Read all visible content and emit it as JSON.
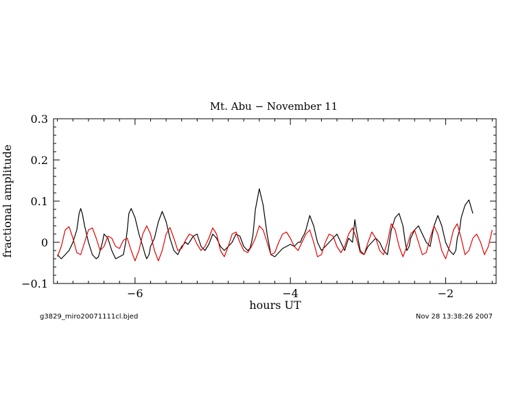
{
  "chart_data": {
    "type": "line",
    "title": "Mt. Abu − November 11",
    "xlabel": "hours UT",
    "ylabel": "fractional amplitude",
    "xlim": [
      -7.05,
      -1.35
    ],
    "ylim": [
      -0.1,
      0.3
    ],
    "x_ticks": [
      -6,
      -4,
      -2
    ],
    "x_tick_labels": [
      "−6",
      "−4",
      "−2"
    ],
    "y_ticks": [
      -0.1,
      0,
      0.1,
      0.2,
      0.3
    ],
    "y_tick_labels": [
      "−0.1",
      "0",
      "0.1",
      "0.2",
      "0.3"
    ],
    "grid": false,
    "series": [
      {
        "color": "#000000",
        "x": [
          -7.0,
          -6.95,
          -6.9,
          -6.85,
          -6.8,
          -6.75,
          -6.72,
          -6.7,
          -6.68,
          -6.65,
          -6.6,
          -6.55,
          -6.5,
          -6.47,
          -6.45,
          -6.42,
          -6.4,
          -6.35,
          -6.3,
          -6.25,
          -6.2,
          -6.15,
          -6.12,
          -6.1,
          -6.08,
          -6.05,
          -6.0,
          -5.95,
          -5.9,
          -5.87,
          -5.85,
          -5.82,
          -5.8,
          -5.75,
          -5.7,
          -5.65,
          -5.6,
          -5.55,
          -5.5,
          -5.45,
          -5.4,
          -5.35,
          -5.32,
          -5.3,
          -5.25,
          -5.2,
          -5.15,
          -5.1,
          -5.05,
          -5.0,
          -4.95,
          -4.9,
          -4.85,
          -4.8,
          -4.75,
          -4.7,
          -4.65,
          -4.6,
          -4.55,
          -4.52,
          -4.5,
          -4.48,
          -4.45,
          -4.4,
          -4.35,
          -4.3,
          -4.25,
          -4.2,
          -4.15,
          -4.1,
          -4.05,
          -4.0,
          -3.95,
          -3.9,
          -3.87,
          -3.85,
          -3.82,
          -3.8,
          -3.75,
          -3.7,
          -3.65,
          -3.6,
          -3.55,
          -3.5,
          -3.45,
          -3.4,
          -3.35,
          -3.3,
          -3.25,
          -3.2,
          -3.17,
          -3.15,
          -3.12,
          -3.1,
          -3.05,
          -3.0,
          -2.95,
          -2.9,
          -2.85,
          -2.8,
          -2.75,
          -2.7,
          -2.65,
          -2.6,
          -2.55,
          -2.52,
          -2.5,
          -2.47,
          -2.45,
          -2.4,
          -2.35,
          -2.3,
          -2.25,
          -2.2,
          -2.15,
          -2.1,
          -2.05,
          -2.0,
          -1.95,
          -1.9,
          -1.87,
          -1.85,
          -1.82,
          -1.8,
          -1.75,
          -1.7,
          -1.65
        ],
        "y": [
          -0.03,
          -0.04,
          -0.03,
          -0.02,
          0.0,
          0.03,
          0.07,
          0.082,
          0.07,
          0.04,
          0.0,
          -0.03,
          -0.04,
          -0.035,
          -0.02,
          0.0,
          0.02,
          0.01,
          -0.02,
          -0.04,
          -0.035,
          -0.03,
          0.0,
          0.03,
          0.07,
          0.082,
          0.06,
          0.02,
          -0.01,
          -0.03,
          -0.04,
          -0.03,
          -0.01,
          0.01,
          0.05,
          0.075,
          0.05,
          0.01,
          -0.02,
          -0.03,
          -0.01,
          0.0,
          -0.005,
          0.0,
          0.015,
          0.02,
          -0.01,
          -0.02,
          -0.005,
          0.02,
          0.01,
          -0.01,
          -0.02,
          -0.01,
          0.0,
          0.02,
          0.015,
          -0.01,
          -0.02,
          -0.015,
          0.0,
          0.02,
          0.08,
          0.13,
          0.09,
          0.02,
          -0.03,
          -0.035,
          -0.025,
          -0.015,
          -0.01,
          -0.005,
          -0.01,
          0.0,
          0.0,
          0.01,
          0.02,
          0.03,
          0.065,
          0.04,
          0.0,
          -0.02,
          -0.01,
          0.0,
          0.01,
          0.02,
          0.0,
          -0.02,
          0.01,
          0.0,
          0.055,
          0.03,
          0.0,
          -0.02,
          -0.03,
          -0.01,
          0.0,
          0.01,
          0.0,
          -0.02,
          -0.03,
          0.03,
          0.06,
          0.07,
          0.04,
          0.0,
          -0.02,
          -0.01,
          0.01,
          0.03,
          0.04,
          0.02,
          0.0,
          -0.01,
          0.04,
          0.065,
          0.04,
          0.0,
          -0.02,
          -0.03,
          -0.02,
          0.01,
          0.03,
          0.06,
          0.09,
          0.103,
          0.07
        ]
      },
      {
        "color": "#e00000",
        "x": [
          -7.0,
          -6.95,
          -6.9,
          -6.85,
          -6.8,
          -6.75,
          -6.7,
          -6.65,
          -6.6,
          -6.55,
          -6.5,
          -6.45,
          -6.4,
          -6.35,
          -6.3,
          -6.25,
          -6.2,
          -6.15,
          -6.1,
          -6.05,
          -6.0,
          -5.95,
          -5.9,
          -5.85,
          -5.8,
          -5.75,
          -5.7,
          -5.65,
          -5.6,
          -5.55,
          -5.5,
          -5.45,
          -5.4,
          -5.35,
          -5.3,
          -5.25,
          -5.2,
          -5.15,
          -5.1,
          -5.05,
          -5.0,
          -4.95,
          -4.9,
          -4.85,
          -4.8,
          -4.75,
          -4.7,
          -4.65,
          -4.6,
          -4.55,
          -4.5,
          -4.45,
          -4.4,
          -4.35,
          -4.3,
          -4.25,
          -4.2,
          -4.15,
          -4.1,
          -4.05,
          -4.0,
          -3.95,
          -3.9,
          -3.85,
          -3.8,
          -3.75,
          -3.7,
          -3.65,
          -3.6,
          -3.55,
          -3.5,
          -3.45,
          -3.4,
          -3.35,
          -3.3,
          -3.25,
          -3.2,
          -3.15,
          -3.1,
          -3.05,
          -3.0,
          -2.95,
          -2.9,
          -2.85,
          -2.8,
          -2.75,
          -2.7,
          -2.65,
          -2.6,
          -2.55,
          -2.5,
          -2.45,
          -2.4,
          -2.35,
          -2.3,
          -2.25,
          -2.2,
          -2.15,
          -2.1,
          -2.05,
          -2.0,
          -1.95,
          -1.9,
          -1.85,
          -1.8,
          -1.75,
          -1.7,
          -1.65,
          -1.6,
          -1.55,
          -1.5,
          -1.45,
          -1.4
        ],
        "y": [
          -0.035,
          -0.01,
          0.03,
          0.038,
          0.01,
          -0.025,
          -0.03,
          0.0,
          0.03,
          0.035,
          0.01,
          -0.02,
          -0.01,
          0.015,
          0.01,
          -0.01,
          -0.015,
          0.005,
          0.01,
          -0.02,
          -0.045,
          -0.02,
          0.02,
          0.04,
          0.02,
          -0.02,
          -0.045,
          -0.02,
          0.02,
          0.036,
          0.01,
          -0.02,
          -0.015,
          0.005,
          0.02,
          0.015,
          -0.005,
          -0.02,
          -0.01,
          0.01,
          0.035,
          0.02,
          -0.02,
          -0.035,
          -0.01,
          0.02,
          0.025,
          0.0,
          -0.02,
          -0.025,
          -0.01,
          0.01,
          0.04,
          0.03,
          0.0,
          -0.03,
          -0.025,
          0.0,
          0.02,
          0.025,
          0.01,
          -0.01,
          -0.02,
          0.0,
          0.02,
          0.03,
          0.0,
          -0.035,
          -0.03,
          0.0,
          0.02,
          0.015,
          -0.01,
          -0.025,
          -0.01,
          0.02,
          0.035,
          0.01,
          -0.025,
          -0.03,
          0.0,
          0.025,
          0.01,
          -0.02,
          -0.03,
          0.0,
          0.045,
          0.03,
          -0.01,
          -0.035,
          -0.01,
          0.02,
          0.03,
          0.0,
          -0.03,
          -0.025,
          0.01,
          0.04,
          0.02,
          -0.02,
          -0.04,
          -0.01,
          0.03,
          0.045,
          0.01,
          -0.03,
          -0.02,
          0.01,
          0.02,
          0.0,
          -0.03,
          -0.01,
          0.03
        ]
      }
    ]
  },
  "footer": {
    "left_text": "g3829_miro20071111cl.bjed",
    "right_text": "Nov 28 13:38:26 2007"
  }
}
